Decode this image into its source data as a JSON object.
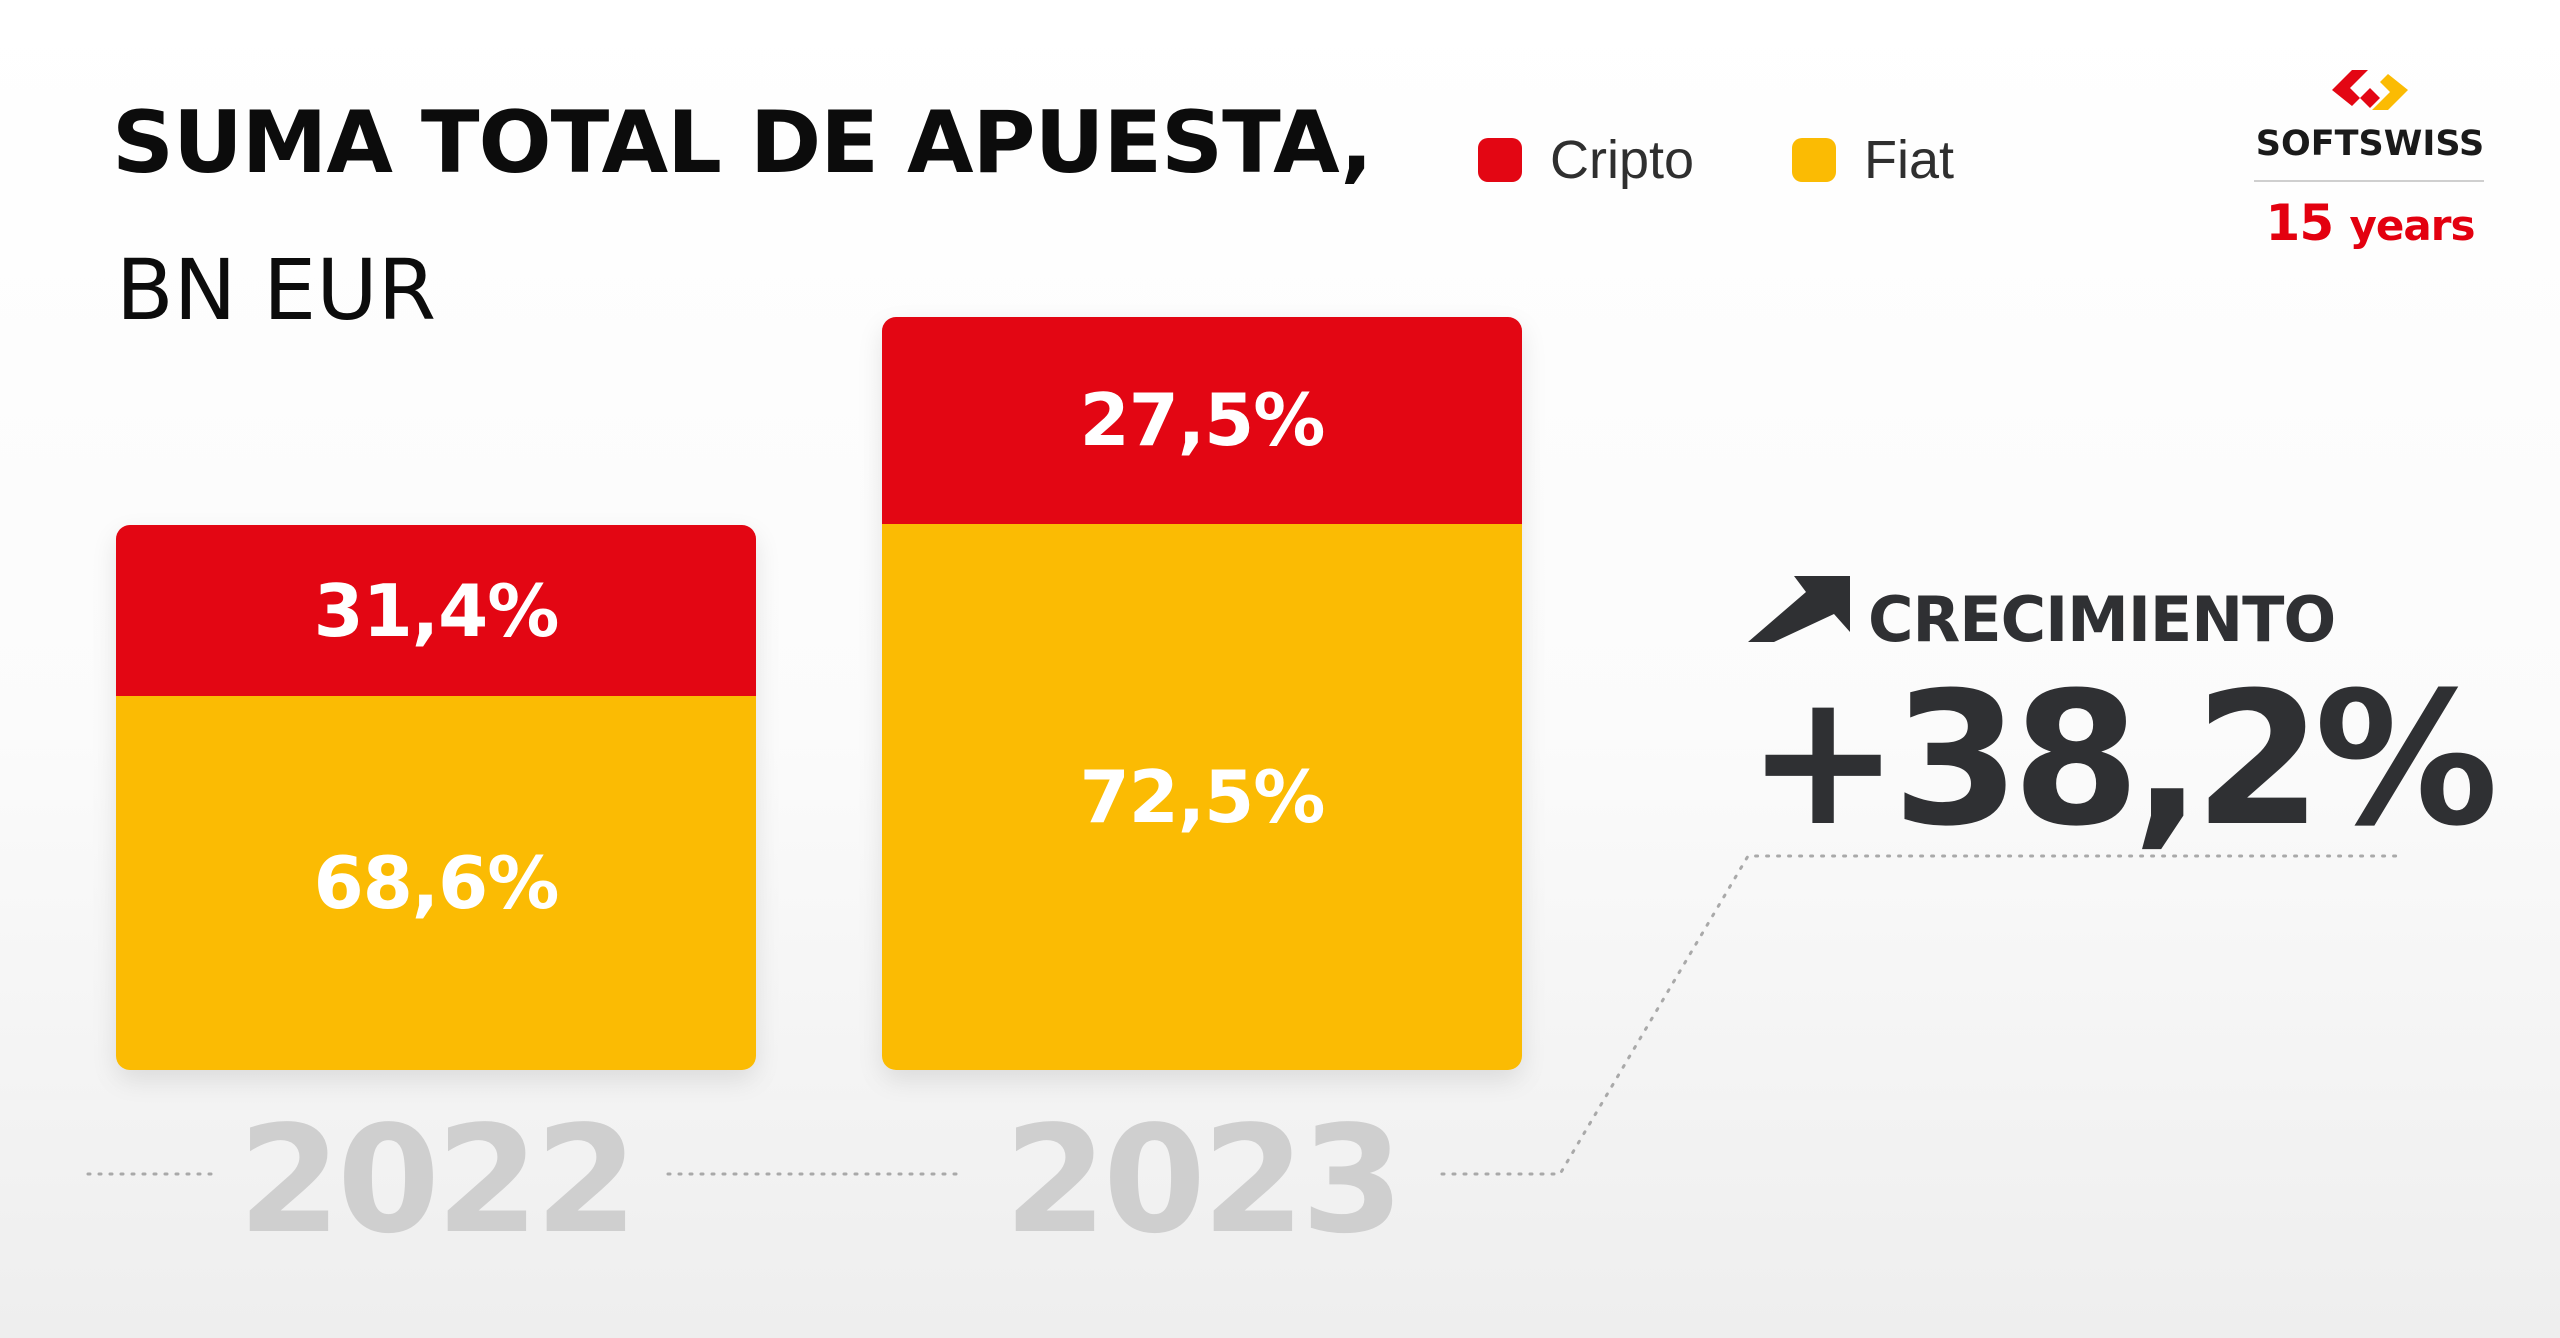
{
  "chart_data": {
    "type": "bar",
    "stacked": true,
    "title": "SUMA TOTAL DE APUESTA,",
    "subtitle": "BN EUR",
    "categories": [
      "2022",
      "2023"
    ],
    "series": [
      {
        "name": "Fiat",
        "color": "#fbbb03",
        "values": [
          68.6,
          72.5
        ],
        "labels": [
          "68,6%",
          "72,5%"
        ]
      },
      {
        "name": "Cripto",
        "color": "#e30613",
        "values": [
          31.4,
          27.5
        ],
        "labels": [
          "31,4%",
          "27,5%"
        ]
      }
    ],
    "total_growth_ratio": 1.382,
    "legend": [
      {
        "name": "Cripto",
        "color": "#e30613"
      },
      {
        "name": "Fiat",
        "color": "#fbbb03"
      }
    ],
    "legend_position": "top",
    "grid": false,
    "annotation": {
      "label": "CRECIMIENTO",
      "value": "+38,2%",
      "icon": "arrow-up-right-icon"
    }
  },
  "brand": {
    "name": "SOFTSWISS",
    "years_number": "15",
    "years_word": "years",
    "accent_color": "#e30613",
    "secondary_color": "#fbbb03"
  }
}
